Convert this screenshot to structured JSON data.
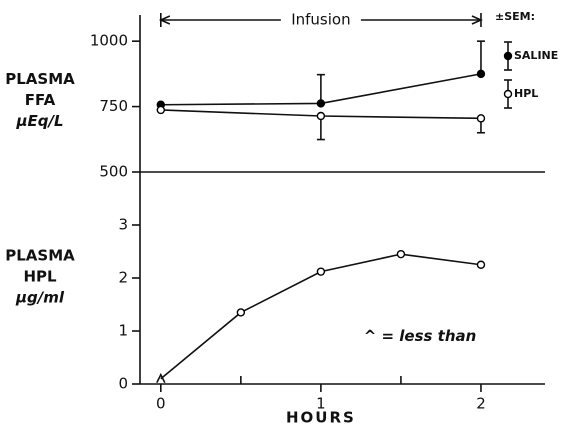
{
  "chart_data": [
    {
      "type": "line",
      "ylabel": [
        "PLASMA",
        "FFA",
        "µEq/L"
      ],
      "ylim": [
        500,
        1100
      ],
      "yticks": [
        500,
        750,
        1000
      ],
      "xlim": [
        -0.13,
        2.4
      ],
      "x": [
        0,
        1,
        2
      ],
      "infusion": {
        "label": "Infusion",
        "from": 0,
        "to": 2
      },
      "legend_title": "±SEM:",
      "series": [
        {
          "name": "SALINE",
          "color": "#000",
          "marker": "filled",
          "values": [
            757,
            762,
            875
          ],
          "errors": [
            0,
            110,
            125
          ],
          "error_direction": "up"
        },
        {
          "name": "HPL",
          "color": "#000",
          "marker": "open",
          "values": [
            737,
            714,
            705
          ],
          "errors": [
            0,
            90,
            55
          ],
          "error_direction": "down"
        }
      ]
    },
    {
      "type": "line",
      "ylabel": [
        "PLASMA",
        "HPL",
        "µg/ml"
      ],
      "ylim": [
        0,
        4
      ],
      "yticks": [
        0,
        1,
        2,
        3
      ],
      "xlim": [
        -0.13,
        2.4
      ],
      "xticks": [
        0,
        1,
        2
      ],
      "xminor_ticks": [
        0.5,
        1.5
      ],
      "xlabel": "HOURS",
      "x": [
        0,
        0.5,
        1,
        1.5,
        2
      ],
      "annotation": "^ = less than",
      "series": [
        {
          "color": "#000",
          "values": [
            0.1,
            1.35,
            2.12,
            2.45,
            2.25
          ],
          "markers": [
            "caret",
            "open",
            "open",
            "open",
            "open"
          ]
        }
      ]
    }
  ]
}
